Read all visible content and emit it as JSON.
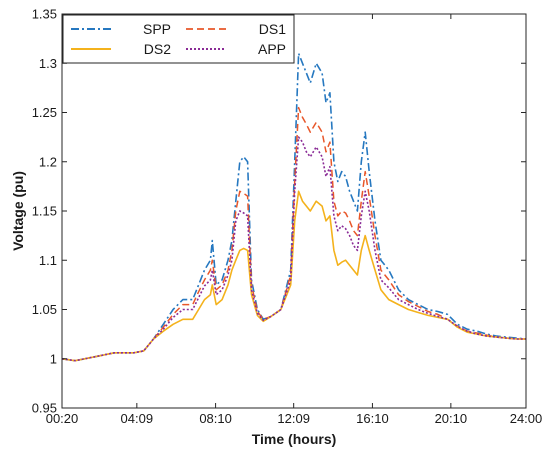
{
  "chart_data": {
    "type": "line",
    "xlabel": "Time (hours)",
    "ylabel": "Voltage (pu)",
    "x_unit": "hours",
    "xlim": [
      0.333,
      24.0
    ],
    "ylim": [
      0.95,
      1.35
    ],
    "grid": false,
    "legend_position": "top-left",
    "x_ticks": [
      {
        "value": 0.333,
        "label": "00:20"
      },
      {
        "value": 4.15,
        "label": "04:09"
      },
      {
        "value": 8.167,
        "label": "08:10"
      },
      {
        "value": 12.15,
        "label": "12:09"
      },
      {
        "value": 16.167,
        "label": "16:10"
      },
      {
        "value": 20.167,
        "label": "20:10"
      },
      {
        "value": 24.0,
        "label": "24:00"
      }
    ],
    "y_ticks": [
      {
        "value": 0.95,
        "label": "0.95"
      },
      {
        "value": 1.0,
        "label": "1"
      },
      {
        "value": 1.05,
        "label": "1.05"
      },
      {
        "value": 1.1,
        "label": "1.1"
      },
      {
        "value": 1.15,
        "label": "1.15"
      },
      {
        "value": 1.2,
        "label": "1.2"
      },
      {
        "value": 1.25,
        "label": "1.25"
      },
      {
        "value": 1.3,
        "label": "1.3"
      },
      {
        "value": 1.35,
        "label": "1.35"
      }
    ],
    "legend_order": [
      "SPP",
      "DS1",
      "DS2",
      "APP"
    ],
    "x": [
      0.33,
      1.0,
      2.0,
      3.0,
      4.0,
      4.5,
      5.0,
      5.5,
      6.0,
      6.5,
      7.0,
      7.3,
      7.6,
      7.9,
      8.0,
      8.2,
      8.5,
      8.8,
      9.0,
      9.2,
      9.4,
      9.6,
      9.8,
      10.0,
      10.3,
      10.6,
      11.0,
      11.5,
      12.0,
      12.2,
      12.4,
      12.6,
      12.8,
      13.0,
      13.3,
      13.6,
      13.8,
      14.0,
      14.2,
      14.4,
      14.6,
      14.8,
      15.0,
      15.2,
      15.4,
      15.6,
      15.8,
      16.0,
      16.3,
      16.6,
      17.0,
      17.5,
      18.0,
      18.5,
      19.0,
      19.5,
      20.0,
      20.5,
      21.0,
      21.5,
      22.0,
      22.5,
      23.0,
      23.5,
      24.0
    ],
    "series": [
      {
        "name": "SPP",
        "color": "#2678c0",
        "dash": "8 3 2 3",
        "width": 1.6,
        "values": [
          1.0,
          0.998,
          1.002,
          1.006,
          1.006,
          1.008,
          1.02,
          1.035,
          1.05,
          1.06,
          1.06,
          1.075,
          1.09,
          1.1,
          1.12,
          1.075,
          1.08,
          1.1,
          1.12,
          1.16,
          1.2,
          1.205,
          1.2,
          1.08,
          1.05,
          1.04,
          1.043,
          1.05,
          1.09,
          1.2,
          1.31,
          1.3,
          1.29,
          1.28,
          1.3,
          1.29,
          1.26,
          1.27,
          1.2,
          1.18,
          1.19,
          1.185,
          1.17,
          1.16,
          1.15,
          1.2,
          1.23,
          1.19,
          1.14,
          1.1,
          1.09,
          1.07,
          1.06,
          1.055,
          1.05,
          1.048,
          1.045,
          1.035,
          1.03,
          1.028,
          1.025,
          1.023,
          1.022,
          1.021,
          1.02
        ]
      },
      {
        "name": "DS1",
        "color": "#e8572a",
        "dash": "7 4",
        "width": 1.5,
        "values": [
          1.0,
          0.998,
          1.002,
          1.006,
          1.006,
          1.008,
          1.02,
          1.032,
          1.045,
          1.055,
          1.055,
          1.068,
          1.08,
          1.09,
          1.1,
          1.07,
          1.075,
          1.09,
          1.11,
          1.15,
          1.17,
          1.168,
          1.165,
          1.075,
          1.048,
          1.04,
          1.043,
          1.05,
          1.085,
          1.18,
          1.255,
          1.245,
          1.238,
          1.23,
          1.24,
          1.23,
          1.21,
          1.22,
          1.16,
          1.145,
          1.15,
          1.148,
          1.14,
          1.13,
          1.125,
          1.16,
          1.19,
          1.165,
          1.125,
          1.09,
          1.08,
          1.065,
          1.058,
          1.053,
          1.048,
          1.045,
          1.04,
          1.033,
          1.028,
          1.026,
          1.024,
          1.022,
          1.021,
          1.02,
          1.02
        ]
      },
      {
        "name": "DS2",
        "color": "#f4b21c",
        "dash": "",
        "width": 1.6,
        "values": [
          1.0,
          0.998,
          1.002,
          1.006,
          1.006,
          1.008,
          1.02,
          1.028,
          1.035,
          1.04,
          1.04,
          1.05,
          1.06,
          1.065,
          1.075,
          1.055,
          1.06,
          1.075,
          1.09,
          1.1,
          1.11,
          1.112,
          1.11,
          1.065,
          1.044,
          1.038,
          1.043,
          1.05,
          1.075,
          1.14,
          1.17,
          1.16,
          1.155,
          1.15,
          1.16,
          1.155,
          1.14,
          1.145,
          1.11,
          1.095,
          1.098,
          1.1,
          1.095,
          1.09,
          1.085,
          1.11,
          1.125,
          1.11,
          1.09,
          1.07,
          1.06,
          1.055,
          1.05,
          1.047,
          1.044,
          1.042,
          1.04,
          1.032,
          1.027,
          1.025,
          1.023,
          1.022,
          1.021,
          1.02,
          1.02
        ]
      },
      {
        "name": "APP",
        "color": "#8a2b96",
        "dash": "2 2",
        "width": 1.6,
        "values": [
          1.0,
          0.998,
          1.002,
          1.006,
          1.006,
          1.008,
          1.02,
          1.03,
          1.042,
          1.05,
          1.05,
          1.062,
          1.074,
          1.08,
          1.09,
          1.065,
          1.07,
          1.085,
          1.1,
          1.14,
          1.15,
          1.148,
          1.145,
          1.07,
          1.046,
          1.039,
          1.043,
          1.05,
          1.08,
          1.17,
          1.225,
          1.22,
          1.21,
          1.205,
          1.215,
          1.205,
          1.185,
          1.195,
          1.145,
          1.13,
          1.135,
          1.132,
          1.125,
          1.115,
          1.11,
          1.145,
          1.17,
          1.15,
          1.11,
          1.08,
          1.072,
          1.06,
          1.055,
          1.05,
          1.046,
          1.043,
          1.04,
          1.033,
          1.028,
          1.025,
          1.023,
          1.022,
          1.021,
          1.02,
          1.02
        ]
      }
    ]
  }
}
